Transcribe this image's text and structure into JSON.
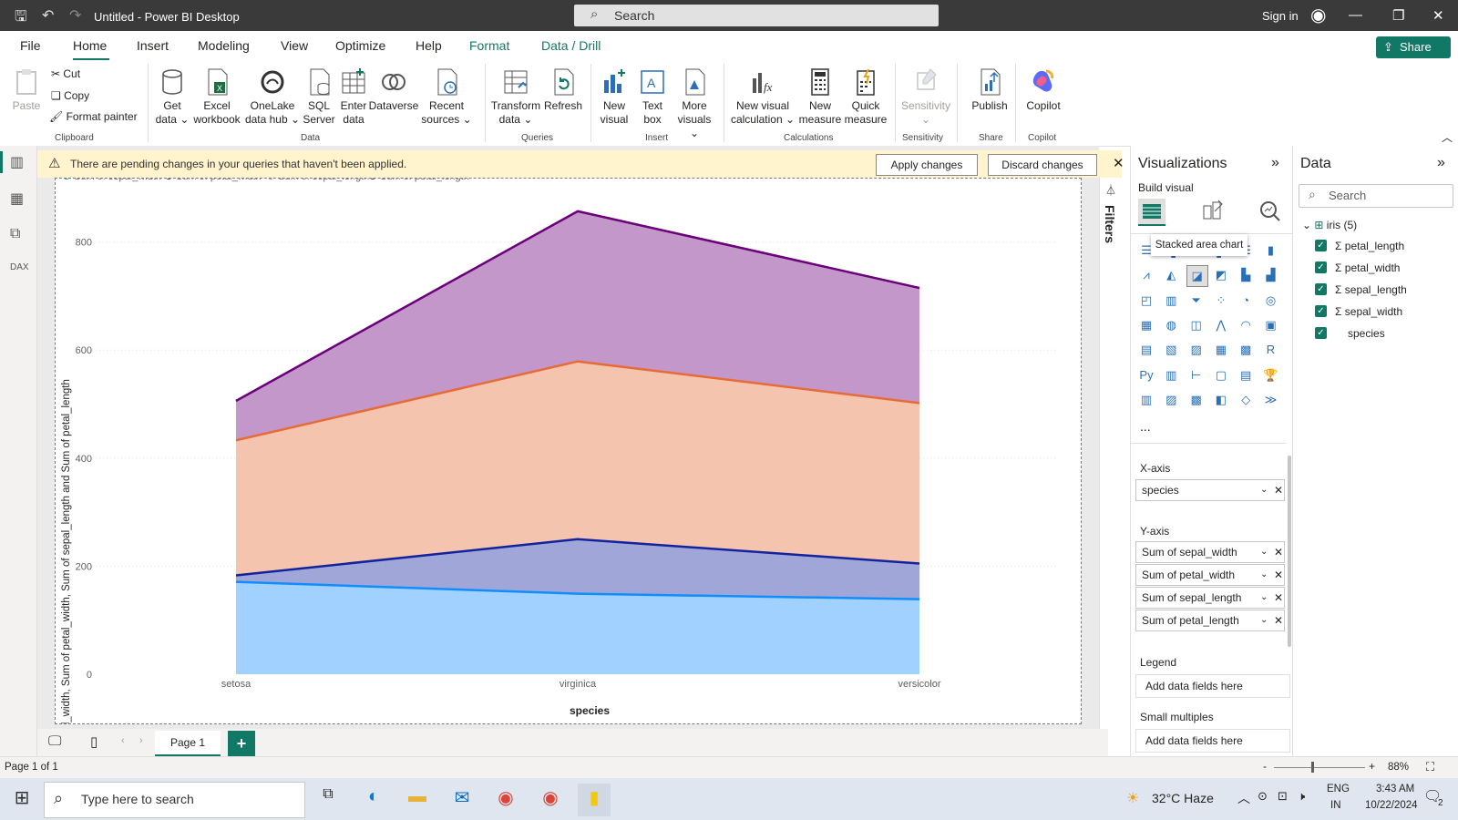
{
  "window": {
    "title": "Untitled - Power BI Desktop",
    "search_placeholder": "Search",
    "signin": "Sign in"
  },
  "menu": {
    "tabs": [
      "File",
      "Home",
      "Insert",
      "Modeling",
      "View",
      "Optimize",
      "Help",
      "Format",
      "Data / Drill"
    ],
    "share": "Share"
  },
  "ribbon": {
    "paste": "Paste",
    "cut": "Cut",
    "copy": "Copy",
    "format_painter": "Format painter",
    "get_data": [
      "Get",
      "data"
    ],
    "excel": [
      "Excel",
      "workbook"
    ],
    "onelake": [
      "OneLake",
      "data hub"
    ],
    "sql": [
      "SQL",
      "Server"
    ],
    "enter": [
      "Enter",
      "data"
    ],
    "dataverse": "Dataverse",
    "recent": [
      "Recent",
      "sources"
    ],
    "transform": [
      "Transform",
      "data"
    ],
    "refresh": "Refresh",
    "new_visual": [
      "New",
      "visual"
    ],
    "text_box": [
      "Text",
      "box"
    ],
    "more_visuals": [
      "More",
      "visuals"
    ],
    "new_visual_calc": [
      "New visual",
      "calculation"
    ],
    "new_measure": [
      "New",
      "measure"
    ],
    "quick_measure": [
      "Quick",
      "measure"
    ],
    "sensitivity": "Sensitivity",
    "publish": "Publish",
    "copilot": "Copilot",
    "groups": {
      "clipboard": "Clipboard",
      "data": "Data",
      "queries": "Queries",
      "insert": "Insert",
      "calculations": "Calculations",
      "sensitivity": "Sensitivity",
      "share": "Share",
      "copilot": "Copilot"
    }
  },
  "warning": {
    "text": "There are pending changes in your queries that haven't been applied.",
    "apply": "Apply changes",
    "discard": "Discard changes"
  },
  "filters_label": "Filters",
  "viz_pane": {
    "title": "Visualizations",
    "build_visual": "Build visual",
    "tooltip": "Stacked area chart",
    "x_axis_label": "X-axis",
    "x_axis_field": "species",
    "y_axis_label": "Y-axis",
    "y_axis_fields": [
      "Sum of sepal_width",
      "Sum of petal_width",
      "Sum of sepal_length",
      "Sum of petal_length"
    ],
    "legend_label": "Legend",
    "legend_placeholder": "Add data fields here",
    "small_multiples_label": "Small multiples",
    "small_multiples_placeholder": "Add data fields here",
    "more": "..."
  },
  "data_pane": {
    "title": "Data",
    "search_placeholder": "Search",
    "table": "iris (5)",
    "fields": [
      {
        "name": "petal_length",
        "sigma": true
      },
      {
        "name": "petal_width",
        "sigma": true
      },
      {
        "name": "sepal_length",
        "sigma": true
      },
      {
        "name": "sepal_width",
        "sigma": true
      },
      {
        "name": "species",
        "sigma": false
      }
    ]
  },
  "page": {
    "tab": "Page 1",
    "status": "Page 1 of 1",
    "zoom": "88%"
  },
  "taskbar": {
    "search": "Type here to search",
    "weather": "32°C  Haze",
    "lang1": "ENG",
    "lang2": "IN",
    "time": "3:43 AM",
    "date": "10/22/2024",
    "notif": "2"
  },
  "chart_data": {
    "type": "area",
    "stacked": true,
    "categories": [
      "setosa",
      "virginica",
      "versicolor"
    ],
    "series": [
      {
        "name": "Sum of sepal_width",
        "values": [
          171,
          149,
          139
        ],
        "color": "#118dff"
      },
      {
        "name": "Sum of petal_width",
        "values": [
          12,
          101,
          66
        ],
        "color": "#12239e"
      },
      {
        "name": "Sum of sepal_length",
        "values": [
          250,
          329,
          297
        ],
        "color": "#e66c37"
      },
      {
        "name": "Sum of petal_length",
        "values": [
          73,
          278,
          213
        ],
        "color": "#6b007b"
      }
    ],
    "xlabel": "species",
    "ylabel": "Sum of sepal_width, Sum of petal_width, Sum of sepal_length and Sum of petal_length",
    "yticks": [
      0,
      200,
      400,
      600,
      800
    ],
    "ylim": [
      0,
      850
    ],
    "legend_position": "top-left"
  }
}
